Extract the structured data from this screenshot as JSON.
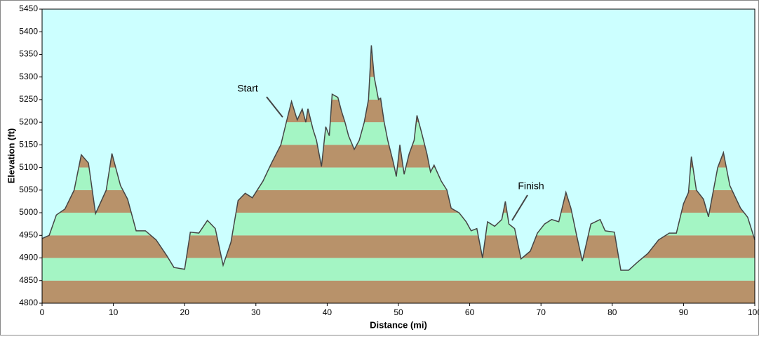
{
  "chart_data": {
    "type": "area",
    "x_label": "Distance   (mi)",
    "y_label": "Elevation (ft)",
    "xlim": [
      0,
      100
    ],
    "ylim": [
      4800,
      5450
    ],
    "xticks": [
      0,
      10,
      20,
      30,
      40,
      50,
      60,
      70,
      80,
      90,
      100
    ],
    "yticks": [
      4800,
      4850,
      4900,
      4950,
      5000,
      5050,
      5100,
      5150,
      5200,
      5250,
      5300,
      5350,
      5400,
      5450
    ],
    "background": "#ccffff",
    "band_colors": [
      "#b8926a",
      "#a4f5c4"
    ],
    "line_color": "#444444",
    "x": [
      0,
      1,
      2,
      3.2,
      4.5,
      5.5,
      6.5,
      7.5,
      9,
      9.8,
      11,
      12,
      13.2,
      14.5,
      16,
      17.5,
      18.5,
      20,
      20.8,
      22,
      23.2,
      24.3,
      25.4,
      26.5,
      27.5,
      28.5,
      29.5,
      31,
      32.2,
      33.5,
      34.3,
      35,
      35.8,
      36.5,
      37,
      37.3,
      38,
      38.5,
      39.2,
      39.8,
      40.3,
      40.7,
      41.5,
      42,
      42.5,
      43,
      43.8,
      44.5,
      45.2,
      45.8,
      46.2,
      46.6,
      47.2,
      47.5,
      48,
      48.5,
      49.3,
      49.7,
      50.2,
      50.8,
      51.5,
      52.2,
      52.6,
      53.2,
      54,
      54.5,
      55,
      56,
      56.8,
      57.4,
      58.5,
      59.5,
      60.2,
      61,
      61.8,
      62.5,
      63.5,
      64.5,
      65,
      65.5,
      66.3,
      67.2,
      68.5,
      69.5,
      70.5,
      71.5,
      72.5,
      73.5,
      74.2,
      75,
      75.8,
      77,
      78.3,
      79,
      80.3,
      81.2,
      82.3,
      83.5,
      85,
      86.5,
      88,
      89,
      90,
      90.7,
      91.1,
      91.8,
      92.8,
      93.5,
      94.2,
      94.8,
      95.6,
      96.5,
      98,
      99,
      100
    ],
    "values": [
      4943,
      4950,
      4995,
      5008,
      5050,
      5128,
      5110,
      4998,
      5050,
      5131,
      5060,
      5030,
      4960,
      4960,
      4940,
      4905,
      4879,
      4875,
      4957,
      4955,
      4983,
      4965,
      4884,
      4935,
      5027,
      5043,
      5033,
      5070,
      5110,
      5150,
      5202,
      5246,
      5205,
      5229,
      5200,
      5230,
      5185,
      5160,
      5102,
      5190,
      5170,
      5262,
      5255,
      5225,
      5200,
      5170,
      5140,
      5160,
      5200,
      5250,
      5370,
      5300,
      5250,
      5253,
      5200,
      5160,
      5110,
      5080,
      5150,
      5085,
      5130,
      5160,
      5215,
      5180,
      5130,
      5090,
      5105,
      5070,
      5050,
      5010,
      5000,
      4980,
      4960,
      4965,
      4900,
      4980,
      4970,
      4985,
      5025,
      4975,
      4965,
      4898,
      4915,
      4955,
      4975,
      4985,
      4980,
      5045,
      5010,
      4950,
      4893,
      4975,
      4985,
      4960,
      4957,
      4873,
      4873,
      4890,
      4910,
      4940,
      4955,
      4955,
      5020,
      5045,
      5124,
      5050,
      5030,
      4991,
      5050,
      5100,
      5133,
      5060,
      5010,
      4990,
      4940
    ],
    "annotations": [
      {
        "text": "Start"
      },
      {
        "text": "Finish"
      }
    ]
  }
}
